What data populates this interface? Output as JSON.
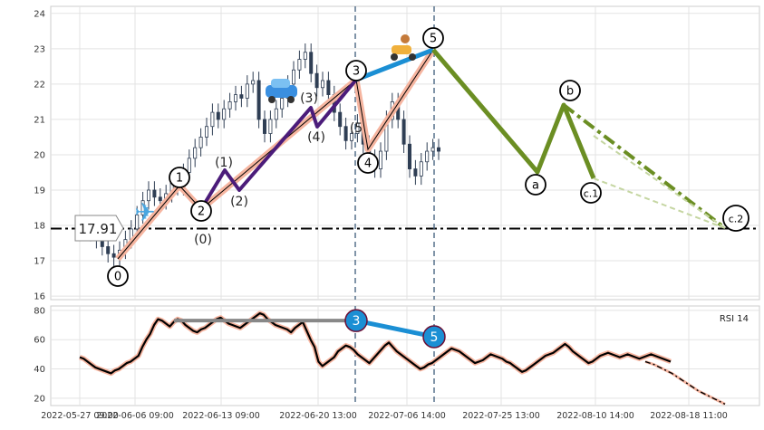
{
  "chart_data": [
    {
      "type": "candlestick",
      "panel": "price",
      "ylim": [
        15.9,
        24.2
      ],
      "yticks": [
        16,
        17,
        18,
        19,
        20,
        21,
        22,
        23,
        24
      ],
      "grid": true,
      "support_line": {
        "value": 17.91,
        "label": "17.91",
        "style": "dash-dot",
        "color": "#000000"
      },
      "candles": [
        {
          "t": 1.0,
          "v": 17.8
        },
        {
          "t": 1.5,
          "v": 17.6
        },
        {
          "t": 2.0,
          "v": 17.4
        },
        {
          "t": 2.4,
          "v": 17.2
        },
        {
          "t": 2.8,
          "v": 17.1
        },
        {
          "t": 3.2,
          "v": 17.3
        },
        {
          "t": 3.6,
          "v": 17.6
        },
        {
          "t": 4.0,
          "v": 17.9
        },
        {
          "t": 4.5,
          "v": 18.3
        },
        {
          "t": 5.0,
          "v": 18.7
        },
        {
          "t": 5.4,
          "v": 19.0
        },
        {
          "t": 5.8,
          "v": 18.8
        },
        {
          "t": 6.2,
          "v": 18.7
        },
        {
          "t": 6.6,
          "v": 18.9
        },
        {
          "t": 7.0,
          "v": 19.2
        },
        {
          "t": 7.5,
          "v": 19.1
        },
        {
          "t": 8.0,
          "v": 19.5
        },
        {
          "t": 8.5,
          "v": 19.9
        },
        {
          "t": 9.0,
          "v": 20.2
        },
        {
          "t": 9.5,
          "v": 20.5
        },
        {
          "t": 10.0,
          "v": 20.8
        },
        {
          "t": 10.5,
          "v": 21.2
        },
        {
          "t": 11.0,
          "v": 21.0
        },
        {
          "t": 11.5,
          "v": 21.3
        },
        {
          "t": 12.0,
          "v": 21.5
        },
        {
          "t": 12.5,
          "v": 21.7
        },
        {
          "t": 13.0,
          "v": 21.6
        },
        {
          "t": 13.5,
          "v": 22.0
        },
        {
          "t": 14.0,
          "v": 22.1
        },
        {
          "t": 14.5,
          "v": 21.0
        },
        {
          "t": 15.0,
          "v": 20.6
        },
        {
          "t": 15.5,
          "v": 21.0
        },
        {
          "t": 16.0,
          "v": 21.3
        },
        {
          "t": 16.5,
          "v": 21.6
        },
        {
          "t": 17.0,
          "v": 22.0
        },
        {
          "t": 17.5,
          "v": 22.4
        },
        {
          "t": 18.0,
          "v": 22.7
        },
        {
          "t": 18.5,
          "v": 22.9
        },
        {
          "t": 19.0,
          "v": 22.3
        },
        {
          "t": 19.5,
          "v": 21.9
        },
        {
          "t": 20.0,
          "v": 22.1
        },
        {
          "t": 20.5,
          "v": 21.7
        },
        {
          "t": 21.0,
          "v": 21.2
        },
        {
          "t": 21.5,
          "v": 20.8
        },
        {
          "t": 22.0,
          "v": 20.4
        },
        {
          "t": 22.5,
          "v": 20.6
        },
        {
          "t": 23.0,
          "v": 20.9
        },
        {
          "t": 23.5,
          "v": 20.3
        },
        {
          "t": 24.0,
          "v": 19.9
        },
        {
          "t": 24.5,
          "v": 19.6
        },
        {
          "t": 25.0,
          "v": 20.1
        },
        {
          "t": 25.5,
          "v": 21.0
        },
        {
          "t": 26.0,
          "v": 21.5
        },
        {
          "t": 26.5,
          "v": 21.0
        },
        {
          "t": 27.0,
          "v": 20.3
        },
        {
          "t": 27.5,
          "v": 19.6
        },
        {
          "t": 28.0,
          "v": 19.4
        },
        {
          "t": 28.5,
          "v": 19.8
        },
        {
          "t": 29.0,
          "v": 20.1
        },
        {
          "t": 29.5,
          "v": 20.2
        },
        {
          "t": 30.0,
          "v": 20.1
        }
      ],
      "waves": [
        {
          "name": "primary",
          "color": "#f2a993",
          "points": [
            [
              2.8,
              17.0
            ],
            [
              4.4,
              19.2
            ],
            [
              5.2,
              18.6
            ],
            [
              11.9,
              22.1
            ],
            [
              12.3,
              20.3
            ],
            [
              14.8,
              23.0
            ]
          ]
        },
        {
          "name": "sub",
          "color": "#4b1c7a",
          "points": [
            [
              5.2,
              18.6
            ],
            [
              6.1,
              19.5
            ],
            [
              6.8,
              19.0
            ],
            [
              9.3,
              21.2
            ],
            [
              9.6,
              20.8
            ],
            [
              11.9,
              22.1
            ]
          ]
        },
        {
          "name": "fifth",
          "color": "#1b8fd4",
          "points": [
            [
              11.9,
              22.1
            ],
            [
              14.8,
              23.0
            ]
          ]
        },
        {
          "name": "correction",
          "color": "#6b8e23",
          "points": [
            [
              14.8,
              23.0
            ],
            [
              18.7,
              19.5
            ],
            [
              19.8,
              21.4
            ],
            [
              21.0,
              19.4
            ]
          ]
        },
        {
          "name": "target",
          "color": "#6b8e23",
          "dashed": true,
          "points": [
            [
              19.8,
              21.4
            ],
            [
              25.7,
              17.95
            ]
          ]
        }
      ],
      "wave_labels": [
        {
          "text": "0",
          "x": 2.2,
          "v": 16.6,
          "circle": true
        },
        {
          "text": "1",
          "x": 4.4,
          "v": 19.4,
          "circle": true
        },
        {
          "text": "2",
          "x": 5.3,
          "v": 18.5,
          "circle": true
        },
        {
          "text": "(0)",
          "x": 5.3,
          "v": 17.7
        },
        {
          "text": "(1)",
          "x": 6.0,
          "v": 19.9
        },
        {
          "text": "(2)",
          "x": 6.8,
          "v": 18.8
        },
        {
          "text": "(3)",
          "x": 9.0,
          "v": 21.7
        },
        {
          "text": "(4)",
          "x": 9.6,
          "v": 20.6
        },
        {
          "text": "(5",
          "x": 11.4,
          "v": 20.9
        },
        {
          "text": "3",
          "x": 11.9,
          "v": 22.4,
          "circle": true
        },
        {
          "text": "4",
          "x": 12.4,
          "v": 19.8,
          "circle": true
        },
        {
          "text": "5",
          "x": 14.8,
          "v": 23.3,
          "circle": true
        },
        {
          "text": "a",
          "x": 18.5,
          "v": 19.2,
          "circle": true
        },
        {
          "text": "b",
          "x": 19.8,
          "v": 21.8,
          "circle": true
        },
        {
          "text": "c.1",
          "x": 20.7,
          "v": 18.9,
          "circle": true
        },
        {
          "text": "c.2",
          "x": 25.7,
          "v": 17.9,
          "circle": true
        }
      ],
      "icons": [
        "airplane-icon",
        "car-icon",
        "scooter-icon"
      ]
    },
    {
      "type": "line",
      "panel": "rsi",
      "label": "RSI 14",
      "ylim": [
        15,
        83
      ],
      "yticks": [
        20,
        40,
        60,
        80
      ],
      "grid": true,
      "values": [
        48,
        47,
        45,
        43,
        41,
        40,
        39,
        38,
        37,
        39,
        40,
        42,
        44,
        45,
        47,
        49,
        55,
        60,
        64,
        70,
        74,
        73,
        71,
        69,
        72,
        74,
        73,
        70,
        68,
        66,
        65,
        67,
        68,
        70,
        72,
        74,
        75,
        73,
        71,
        70,
        69,
        68,
        70,
        72,
        74,
        76,
        78,
        77,
        74,
        72,
        70,
        69,
        68,
        67,
        65,
        68,
        70,
        72,
        66,
        60,
        55,
        45,
        42,
        44,
        46,
        48,
        52,
        54,
        56,
        55,
        53,
        50,
        48,
        46,
        44,
        47,
        50,
        53,
        56,
        58,
        55,
        52,
        50,
        48,
        46,
        44,
        42,
        40,
        41,
        43,
        44,
        46,
        48,
        50,
        52,
        54,
        53,
        52,
        50,
        48,
        46,
        44,
        45,
        46,
        48,
        50,
        49,
        48,
        47,
        45,
        44,
        42,
        40,
        38,
        39,
        41,
        43,
        45,
        47,
        49,
        50,
        51,
        53,
        55,
        57,
        55,
        52,
        50,
        48,
        46,
        44,
        45,
        47,
        49,
        50,
        51,
        50,
        49,
        48,
        49,
        50,
        49,
        48,
        47,
        48,
        49,
        50,
        49,
        48,
        47,
        46,
        45
      ],
      "forecast": [
        45,
        43,
        40,
        37,
        33,
        29,
        25,
        22,
        19,
        16
      ],
      "wave_markers": [
        {
          "text": "3",
          "index": 62,
          "v": 72
        },
        {
          "text": "5",
          "index": 92,
          "v": 63
        }
      ],
      "reference_line": {
        "from_index": 19,
        "to_index": 62,
        "v": 73,
        "color": "#888888"
      }
    }
  ],
  "price_panel": {
    "label_box": "17.91"
  },
  "rsi_panel": {
    "title": "RSI 14"
  },
  "x_axis": {
    "ticks": [
      "2022-05-27 09:00",
      "2022-06-06 09:00",
      "2022-06-13 09:00",
      "2022-06-20 13:00",
      "2022-07-06 14:00",
      "2022-07-25 13:00",
      "2022-08-10 14:00",
      "2022-08-18 11:00"
    ]
  }
}
